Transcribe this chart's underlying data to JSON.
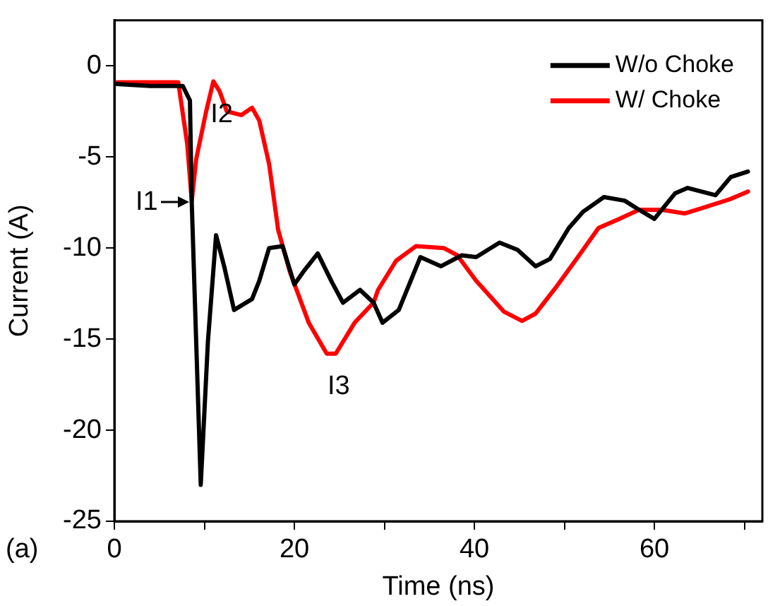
{
  "chart_data": {
    "type": "line",
    "xlabel": "Time (ns)",
    "ylabel": "Current (A)",
    "xlim": [
      0,
      72
    ],
    "ylim": [
      -25,
      2.5
    ],
    "xticks": [
      0,
      {
        "value": 10,
        "label": null
      },
      20,
      {
        "value": 30,
        "label": null
      },
      40,
      {
        "value": 50,
        "label": null
      },
      60,
      {
        "value": 70,
        "label": null
      }
    ],
    "yticks": [
      0,
      -5,
      -10,
      -15,
      -20,
      -25
    ],
    "grid": false,
    "legend": "top right",
    "marker": "none",
    "line_style": "solid",
    "annotations": [
      {
        "text": "I1",
        "x": 8.6,
        "y": -7.5
      },
      {
        "text": "I2",
        "x": 11,
        "y": -0.85
      },
      {
        "text": "I3",
        "x": 24,
        "y": -15.8
      },
      "(a)"
    ],
    "series": [
      {
        "name": "W/o Choke",
        "color": "#000000",
        "x": [
          0.3,
          4,
          7.6,
          8.4,
          8.6,
          9.6,
          10.4,
          11.3,
          12.2,
          13.3,
          15.3,
          16.1,
          17.2,
          18.7,
          20,
          21,
          22.6,
          24.2,
          25.4,
          27.3,
          28.8,
          29.8,
          31.6,
          34,
          36.3,
          38.6,
          40.2,
          42.8,
          44.8,
          46.8,
          48.4,
          50.5,
          52.1,
          54.4,
          56.7,
          58.3,
          60,
          62.3,
          63.7,
          66.8,
          68.5,
          70.4
        ],
        "values": [
          -1.0,
          -1.1,
          -1.1,
          -1.9,
          -7.5,
          -23,
          -15.1,
          -9.3,
          -11,
          -13.4,
          -12.8,
          -11.8,
          -10,
          -9.9,
          -12,
          -11.3,
          -10.3,
          -11.9,
          -13,
          -12.3,
          -13,
          -14.1,
          -13.4,
          -10.5,
          -11,
          -10.4,
          -10.5,
          -9.7,
          -10.1,
          -11,
          -10.6,
          -8.9,
          -8.0,
          -7.2,
          -7.4,
          -7.9,
          -8.4,
          -7.0,
          -6.7,
          -7.1,
          -6.1,
          -5.8
        ]
      },
      {
        "name": "W/ Choke",
        "color": "#ff0000",
        "x": [
          0.3,
          4,
          7.1,
          8.1,
          8.6,
          9.1,
          10.2,
          11,
          11.7,
          12.5,
          14.1,
          15.3,
          16.1,
          17.2,
          18.2,
          19.5,
          21.6,
          23.6,
          24.6,
          26.7,
          28.8,
          29.3,
          31.3,
          33.5,
          36.6,
          38.1,
          40.2,
          43.3,
          45.3,
          46.8,
          49,
          51.5,
          53.8,
          56.1,
          58.3,
          60.8,
          63.4,
          66,
          68.5,
          70.4
        ],
        "values": [
          -0.9,
          -0.9,
          -0.9,
          -4.3,
          -7.4,
          -5.1,
          -2.5,
          -0.85,
          -1.4,
          -2.5,
          -2.7,
          -2.3,
          -3.0,
          -5.4,
          -9,
          -11.3,
          -14.1,
          -15.8,
          -15.8,
          -14.1,
          -13,
          -12.3,
          -10.7,
          -9.9,
          -10,
          -10.4,
          -11.8,
          -13.5,
          -14,
          -13.6,
          -12.2,
          -10.5,
          -8.9,
          -8.4,
          -7.9,
          -7.9,
          -8.1,
          -7.7,
          -7.3,
          -6.9
        ]
      }
    ]
  }
}
